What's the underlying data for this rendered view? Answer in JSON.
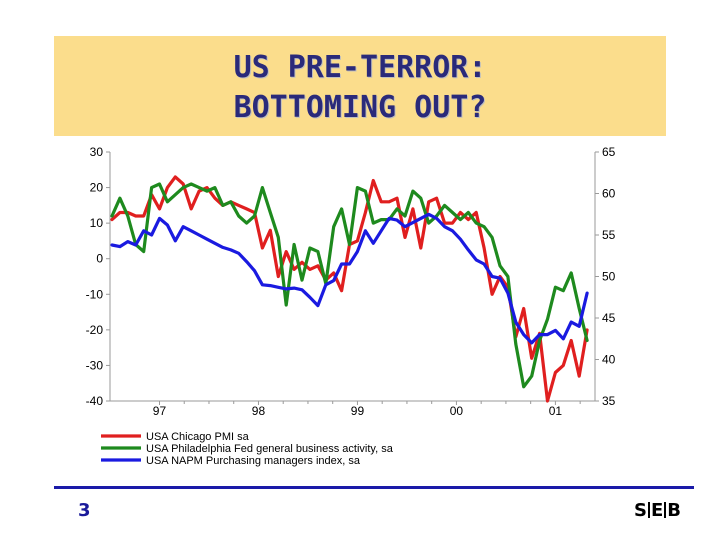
{
  "header": {
    "title_line_1": "US PRE-TERROR:",
    "title_line_2": "BOTTOMING OUT?"
  },
  "footer": {
    "page_number": "3",
    "logo_letters": [
      "S",
      "E",
      "B"
    ]
  },
  "chart_data": {
    "type": "line",
    "title": "",
    "x_ticks": [
      {
        "label": "97",
        "value": 1997.0
      },
      {
        "label": "98",
        "value": 1998.0
      },
      {
        "label": "99",
        "value": 1999.0
      },
      {
        "label": "00",
        "value": 2000.0
      },
      {
        "label": "01",
        "value": 2001.0
      }
    ],
    "xlim": [
      1996.5,
      2001.4
    ],
    "y_left": {
      "ylim": [
        -40,
        30
      ],
      "ticks": [
        30,
        20,
        10,
        0,
        -10,
        -20,
        -30,
        -40
      ]
    },
    "y_right": {
      "ylim": [
        35,
        65
      ],
      "ticks": [
        65,
        60,
        55,
        50,
        45,
        40,
        35
      ]
    },
    "grid": false,
    "legend_position": "bottom-left",
    "series": [
      {
        "name": "USA Chicago PMI sa",
        "axis": "left",
        "color": "#e01f1f",
        "points": [
          [
            1996.52,
            11
          ],
          [
            1996.6,
            13
          ],
          [
            1996.68,
            13
          ],
          [
            1996.76,
            12
          ],
          [
            1996.84,
            12
          ],
          [
            1996.92,
            18
          ],
          [
            1997.0,
            14
          ],
          [
            1997.08,
            20
          ],
          [
            1997.16,
            23
          ],
          [
            1997.24,
            21
          ],
          [
            1997.32,
            14
          ],
          [
            1997.4,
            19
          ],
          [
            1997.48,
            20
          ],
          [
            1997.56,
            17
          ],
          [
            1997.64,
            15
          ],
          [
            1997.72,
            16
          ],
          [
            1997.8,
            15
          ],
          [
            1997.88,
            14
          ],
          [
            1997.96,
            13
          ],
          [
            1998.04,
            3
          ],
          [
            1998.12,
            8
          ],
          [
            1998.2,
            -5
          ],
          [
            1998.28,
            2
          ],
          [
            1998.36,
            -3
          ],
          [
            1998.44,
            -1
          ],
          [
            1998.52,
            -3
          ],
          [
            1998.6,
            -2
          ],
          [
            1998.68,
            -6
          ],
          [
            1998.76,
            -4
          ],
          [
            1998.84,
            -9
          ],
          [
            1998.92,
            4
          ],
          [
            1999.0,
            5
          ],
          [
            1999.08,
            13
          ],
          [
            1999.16,
            22
          ],
          [
            1999.24,
            16
          ],
          [
            1999.32,
            16
          ],
          [
            1999.4,
            17
          ],
          [
            1999.48,
            6
          ],
          [
            1999.56,
            14
          ],
          [
            1999.64,
            3
          ],
          [
            1999.72,
            16
          ],
          [
            1999.8,
            17
          ],
          [
            1999.88,
            10
          ],
          [
            1999.96,
            10
          ],
          [
            2000.04,
            13
          ],
          [
            2000.12,
            11
          ],
          [
            2000.2,
            13
          ],
          [
            2000.28,
            3
          ],
          [
            2000.36,
            -10
          ],
          [
            2000.44,
            -5
          ],
          [
            2000.52,
            -8
          ],
          [
            2000.6,
            -22
          ],
          [
            2000.68,
            -14
          ],
          [
            2000.76,
            -28
          ],
          [
            2000.84,
            -21
          ],
          [
            2000.92,
            -40
          ],
          [
            2001.0,
            -32
          ],
          [
            2001.08,
            -30
          ],
          [
            2001.16,
            -23
          ],
          [
            2001.24,
            -33
          ],
          [
            2001.32,
            -20
          ]
        ]
      },
      {
        "name": "USA Philadelphia Fed general business activity, sa",
        "axis": "left",
        "color": "#1e8a1e",
        "points": [
          [
            1996.52,
            12
          ],
          [
            1996.6,
            17
          ],
          [
            1996.68,
            12
          ],
          [
            1996.76,
            4
          ],
          [
            1996.84,
            2
          ],
          [
            1996.92,
            20
          ],
          [
            1997.0,
            21
          ],
          [
            1997.08,
            16
          ],
          [
            1997.16,
            18
          ],
          [
            1997.24,
            20
          ],
          [
            1997.32,
            21
          ],
          [
            1997.4,
            20
          ],
          [
            1997.48,
            19
          ],
          [
            1997.56,
            20
          ],
          [
            1997.64,
            15
          ],
          [
            1997.72,
            16
          ],
          [
            1997.8,
            12
          ],
          [
            1997.88,
            10
          ],
          [
            1997.96,
            12
          ],
          [
            1998.04,
            20
          ],
          [
            1998.12,
            13
          ],
          [
            1998.2,
            6
          ],
          [
            1998.28,
            -13
          ],
          [
            1998.36,
            4
          ],
          [
            1998.44,
            -6
          ],
          [
            1998.52,
            3
          ],
          [
            1998.6,
            2
          ],
          [
            1998.68,
            -7
          ],
          [
            1998.76,
            9
          ],
          [
            1998.84,
            14
          ],
          [
            1998.92,
            4
          ],
          [
            1999.0,
            20
          ],
          [
            1999.08,
            19
          ],
          [
            1999.16,
            10
          ],
          [
            1999.24,
            11
          ],
          [
            1999.32,
            11
          ],
          [
            1999.4,
            14
          ],
          [
            1999.48,
            12
          ],
          [
            1999.56,
            19
          ],
          [
            1999.64,
            17
          ],
          [
            1999.72,
            10
          ],
          [
            1999.8,
            12
          ],
          [
            1999.88,
            15
          ],
          [
            1999.96,
            13
          ],
          [
            2000.04,
            11
          ],
          [
            2000.12,
            13
          ],
          [
            2000.2,
            10
          ],
          [
            2000.28,
            9
          ],
          [
            2000.36,
            6
          ],
          [
            2000.44,
            -2
          ],
          [
            2000.52,
            -5
          ],
          [
            2000.6,
            -24
          ],
          [
            2000.68,
            -36
          ],
          [
            2000.76,
            -33
          ],
          [
            2000.84,
            -23
          ],
          [
            2000.92,
            -17
          ],
          [
            2001.0,
            -8
          ],
          [
            2001.08,
            -9
          ],
          [
            2001.16,
            -4
          ],
          [
            2001.24,
            -14
          ],
          [
            2001.32,
            -23
          ]
        ]
      },
      {
        "name": "USA NAPM Purchasing managers index, sa",
        "axis": "right",
        "color": "#1a1ae0",
        "points": [
          [
            1996.52,
            53.8
          ],
          [
            1996.6,
            53.6
          ],
          [
            1996.68,
            54.2
          ],
          [
            1996.76,
            53.8
          ],
          [
            1996.84,
            55.5
          ],
          [
            1996.92,
            55.0
          ],
          [
            1997.0,
            57.0
          ],
          [
            1997.08,
            56.2
          ],
          [
            1997.16,
            54.3
          ],
          [
            1997.24,
            56.0
          ],
          [
            1997.32,
            55.5
          ],
          [
            1997.4,
            55.0
          ],
          [
            1997.48,
            54.5
          ],
          [
            1997.56,
            54.0
          ],
          [
            1997.64,
            53.5
          ],
          [
            1997.72,
            53.2
          ],
          [
            1997.8,
            52.8
          ],
          [
            1997.88,
            51.8
          ],
          [
            1997.96,
            50.7
          ],
          [
            1998.04,
            49.0
          ],
          [
            1998.12,
            48.9
          ],
          [
            1998.2,
            48.7
          ],
          [
            1998.28,
            48.5
          ],
          [
            1998.36,
            48.6
          ],
          [
            1998.44,
            48.4
          ],
          [
            1998.52,
            47.5
          ],
          [
            1998.6,
            46.5
          ],
          [
            1998.68,
            49.0
          ],
          [
            1998.76,
            49.5
          ],
          [
            1998.84,
            51.5
          ],
          [
            1998.92,
            51.5
          ],
          [
            1999.0,
            53.0
          ],
          [
            1999.08,
            55.5
          ],
          [
            1999.16,
            54.0
          ],
          [
            1999.24,
            55.5
          ],
          [
            1999.32,
            57.0
          ],
          [
            1999.4,
            56.8
          ],
          [
            1999.48,
            56.0
          ],
          [
            1999.56,
            56.5
          ],
          [
            1999.64,
            57.0
          ],
          [
            1999.72,
            57.5
          ],
          [
            1999.8,
            57.0
          ],
          [
            1999.88,
            56.0
          ],
          [
            1999.96,
            55.5
          ],
          [
            2000.04,
            54.5
          ],
          [
            2000.12,
            53.2
          ],
          [
            2000.2,
            52.0
          ],
          [
            2000.28,
            51.5
          ],
          [
            2000.36,
            50.0
          ],
          [
            2000.44,
            49.8
          ],
          [
            2000.52,
            48.0
          ],
          [
            2000.6,
            44.5
          ],
          [
            2000.68,
            43.0
          ],
          [
            2000.76,
            42.0
          ],
          [
            2000.84,
            43.0
          ],
          [
            2000.92,
            43.0
          ],
          [
            2001.0,
            43.5
          ],
          [
            2001.08,
            42.5
          ],
          [
            2001.16,
            44.5
          ],
          [
            2001.24,
            44.0
          ],
          [
            2001.32,
            48.0
          ]
        ]
      }
    ]
  }
}
